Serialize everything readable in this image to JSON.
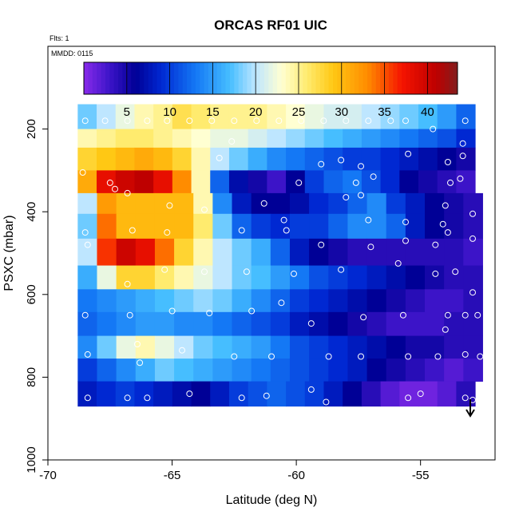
{
  "chart_data": {
    "type": "heatmap",
    "title": "ORCAS RF01 UIC",
    "flights_note": "Flts: 1",
    "date_note": "MMDD: 0115",
    "xlabel": "Latitude (deg N)",
    "ylabel": "PSXC (mbar)",
    "xlim": [
      -70,
      -52
    ],
    "ylim": [
      1000,
      0
    ],
    "x_ticks": [
      -70,
      -65,
      -60,
      -55
    ],
    "y_ticks": [
      200,
      400,
      600,
      800,
      1000
    ],
    "colorbar": {
      "min": 0,
      "max": 43.5,
      "ticks": [
        5,
        10,
        15,
        20,
        25,
        30,
        35,
        40
      ]
    },
    "grid": false,
    "legend": "colorbar top",
    "y_rows": [
      {
        "p": 180,
        "x0": -68.8,
        "x1": -52.8,
        "v": [
          18,
          20,
          22,
          24,
          25,
          27,
          26,
          25,
          25,
          25,
          24,
          23,
          22,
          21,
          21,
          20,
          19,
          18,
          17,
          15,
          12
        ]
      },
      {
        "p": 220,
        "x0": -68.8,
        "x1": -52.8,
        "v": [
          24,
          25,
          26,
          26,
          25,
          24,
          23,
          22,
          22,
          21,
          20,
          19,
          18,
          17,
          16,
          15,
          14,
          13,
          12,
          11,
          9
        ]
      },
      {
        "p": 270,
        "x0": -68.8,
        "x1": -52.8,
        "v": [
          28,
          29,
          30,
          31,
          30,
          28,
          24,
          20,
          18,
          16,
          14,
          13,
          12,
          11,
          10,
          10,
          9,
          8,
          7,
          6,
          5
        ]
      },
      {
        "p": 330,
        "x0": -68.8,
        "x1": -52.8,
        "v": [
          31,
          38,
          40,
          41,
          38,
          33,
          24,
          12,
          7,
          5,
          3,
          6,
          10,
          12,
          13,
          11,
          9,
          6,
          5,
          4,
          3
        ]
      },
      {
        "p": 380,
        "x0": -68.8,
        "x1": -52.5,
        "v": [
          20,
          32,
          30,
          30,
          30,
          30,
          24,
          14,
          8,
          6,
          6,
          7,
          9,
          10,
          12,
          14,
          10,
          8,
          6,
          5,
          4
        ]
      },
      {
        "p": 430,
        "x0": -68.8,
        "x1": -52.5,
        "v": [
          18,
          34,
          30,
          30,
          30,
          30,
          26,
          18,
          12,
          10,
          9,
          10,
          10,
          12,
          14,
          14,
          12,
          8,
          6,
          5,
          4
        ]
      },
      {
        "p": 500,
        "x0": -68.8,
        "x1": -52.5,
        "v": [
          20,
          36,
          40,
          38,
          34,
          28,
          24,
          20,
          18,
          16,
          12,
          8,
          6,
          5,
          4,
          4,
          4,
          4,
          4,
          4,
          3
        ]
      },
      {
        "p": 560,
        "x0": -68.8,
        "x1": -52.5,
        "v": [
          16,
          22,
          28,
          28,
          26,
          24,
          22,
          20,
          18,
          17,
          15,
          13,
          11,
          10,
          9,
          8,
          7,
          6,
          5,
          4,
          4
        ]
      },
      {
        "p": 615,
        "x0": -68.8,
        "x1": -52.5,
        "v": [
          13,
          14,
          15,
          16,
          17,
          18,
          19,
          18,
          16,
          14,
          12,
          10,
          9,
          8,
          7,
          6,
          5,
          4,
          3,
          3,
          4
        ]
      },
      {
        "p": 670,
        "x0": -68.8,
        "x1": -52.5,
        "v": [
          12,
          13,
          14,
          15,
          15,
          14,
          14,
          13,
          12,
          11,
          10,
          8,
          7,
          6,
          5,
          4,
          3,
          3,
          3,
          4,
          4
        ]
      },
      {
        "p": 730,
        "x0": -68.8,
        "x1": -52.5,
        "v": [
          14,
          18,
          22,
          24,
          22,
          20,
          18,
          17,
          16,
          15,
          13,
          11,
          10,
          9,
          8,
          7,
          6,
          5,
          5,
          4,
          4
        ]
      },
      {
        "p": 780,
        "x0": -68.8,
        "x1": -52.5,
        "v": [
          10,
          12,
          14,
          16,
          18,
          17,
          16,
          15,
          14,
          13,
          12,
          11,
          10,
          9,
          8,
          6,
          5,
          4,
          3,
          2,
          3
        ]
      },
      {
        "p": 840,
        "x0": -68.8,
        "x1": -52.8,
        "v": [
          8,
          9,
          10,
          9,
          8,
          7,
          6,
          8,
          10,
          11,
          12,
          11,
          10,
          8,
          6,
          4,
          2,
          1,
          1,
          2,
          4
        ]
      }
    ],
    "markers": [
      [
        -68.5,
        180
      ],
      [
        -67.7,
        180
      ],
      [
        -66.8,
        180
      ],
      [
        -66.0,
        180
      ],
      [
        -65.2,
        180
      ],
      [
        -64.3,
        180
      ],
      [
        -63.4,
        180
      ],
      [
        -62.5,
        180
      ],
      [
        -61.6,
        180
      ],
      [
        -60.7,
        180
      ],
      [
        -59.8,
        180
      ],
      [
        -58.9,
        180
      ],
      [
        -58.0,
        180
      ],
      [
        -57.1,
        180
      ],
      [
        -56.2,
        180
      ],
      [
        -55.6,
        180
      ],
      [
        -53.2,
        180
      ],
      [
        -62.6,
        230
      ],
      [
        -54.5,
        200
      ],
      [
        -53.3,
        235
      ],
      [
        -55.5,
        260
      ],
      [
        -63.1,
        270
      ],
      [
        -53.3,
        265
      ],
      [
        -53.9,
        280
      ],
      [
        -58.2,
        275
      ],
      [
        -57.4,
        290
      ],
      [
        -59.0,
        285
      ],
      [
        -68.6,
        305
      ],
      [
        -67.5,
        330
      ],
      [
        -59.9,
        330
      ],
      [
        -57.6,
        330
      ],
      [
        -57.4,
        360
      ],
      [
        -53.8,
        330
      ],
      [
        -53.4,
        320
      ],
      [
        -56.9,
        315
      ],
      [
        -66.8,
        355
      ],
      [
        -67.3,
        345
      ],
      [
        -61.3,
        380
      ],
      [
        -65.1,
        385
      ],
      [
        -58.0,
        365
      ],
      [
        -54.0,
        385
      ],
      [
        -63.7,
        395
      ],
      [
        -52.9,
        405
      ],
      [
        -60.5,
        420
      ],
      [
        -57.1,
        420
      ],
      [
        -62.2,
        445
      ],
      [
        -65.2,
        450
      ],
      [
        -66.6,
        445
      ],
      [
        -60.4,
        445
      ],
      [
        -55.6,
        425
      ],
      [
        -54.1,
        430
      ],
      [
        -53.9,
        450
      ],
      [
        -52.9,
        465
      ],
      [
        -68.5,
        450
      ],
      [
        -68.4,
        480
      ],
      [
        -59.0,
        480
      ],
      [
        -57.0,
        485
      ],
      [
        -55.6,
        470
      ],
      [
        -54.4,
        480
      ],
      [
        -65.3,
        540
      ],
      [
        -63.7,
        545
      ],
      [
        -62.0,
        545
      ],
      [
        -60.1,
        550
      ],
      [
        -58.2,
        540
      ],
      [
        -55.9,
        525
      ],
      [
        -54.4,
        550
      ],
      [
        -53.6,
        545
      ],
      [
        -66.8,
        575
      ],
      [
        -66.7,
        650
      ],
      [
        -65.0,
        640
      ],
      [
        -63.5,
        645
      ],
      [
        -61.8,
        640
      ],
      [
        -60.6,
        620
      ],
      [
        -59.4,
        670
      ],
      [
        -57.3,
        655
      ],
      [
        -55.7,
        650
      ],
      [
        -54.0,
        685
      ],
      [
        -53.9,
        650
      ],
      [
        -53.2,
        650
      ],
      [
        -52.9,
        595
      ],
      [
        -52.7,
        650
      ],
      [
        -68.5,
        650
      ],
      [
        -66.4,
        720
      ],
      [
        -66.3,
        765
      ],
      [
        -64.6,
        735
      ],
      [
        -62.5,
        750
      ],
      [
        -61.0,
        750
      ],
      [
        -58.7,
        750
      ],
      [
        -57.4,
        750
      ],
      [
        -55.5,
        750
      ],
      [
        -54.3,
        750
      ],
      [
        -53.2,
        745
      ],
      [
        -52.6,
        750
      ],
      [
        -68.4,
        745
      ],
      [
        -66.8,
        850
      ],
      [
        -66.0,
        850
      ],
      [
        -64.3,
        840
      ],
      [
        -62.2,
        850
      ],
      [
        -61.2,
        845
      ],
      [
        -59.4,
        830
      ],
      [
        -58.8,
        860
      ],
      [
        -55.5,
        850
      ],
      [
        -55.0,
        840
      ],
      [
        -53.2,
        850
      ],
      [
        -52.9,
        855
      ],
      [
        -68.4,
        850
      ]
    ]
  }
}
